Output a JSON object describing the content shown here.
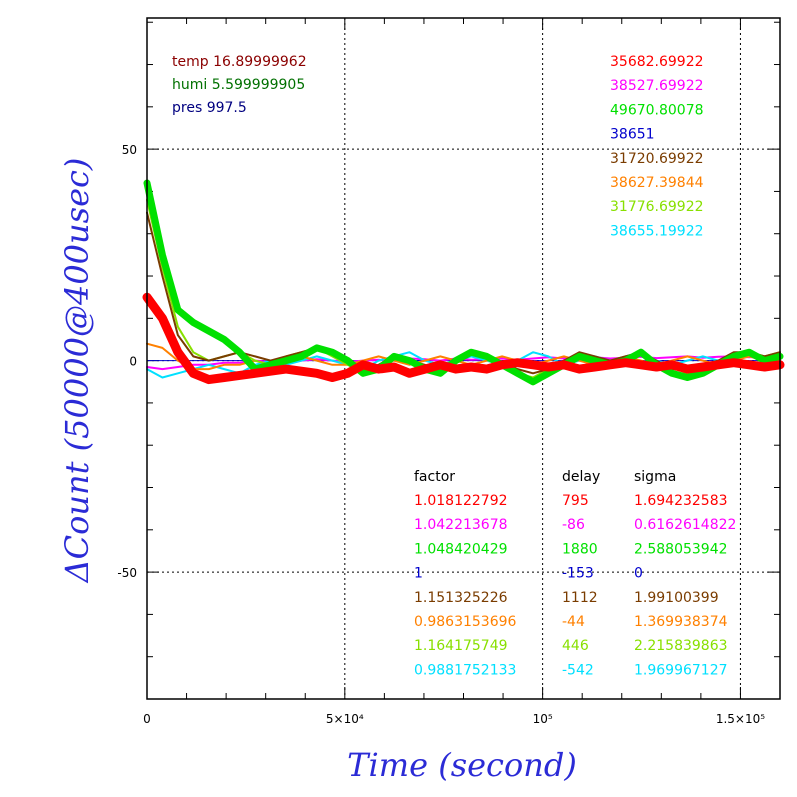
{
  "chart_data": {
    "type": "line",
    "xlabel": "Time (second)",
    "ylabel": "ΔCount (50000@400usec)",
    "xlim": [
      0,
      160000
    ],
    "ylim": [
      -80,
      81
    ],
    "grid": true,
    "x_ticks": [
      {
        "value": 0,
        "label": "0"
      },
      {
        "value": 50000,
        "label": "5×10⁴"
      },
      {
        "value": 100000,
        "label": "10⁵"
      },
      {
        "value": 150000,
        "label": "1.5×10⁵"
      }
    ],
    "y_ticks": [
      {
        "value": 50,
        "label": "50"
      },
      {
        "value": 0,
        "label": "0"
      },
      {
        "value": -50,
        "label": "-50"
      }
    ],
    "env": [
      {
        "text": "temp 16.89999962",
        "color": "#8b0000"
      },
      {
        "text": "humi 5.599999905",
        "color": "#007000"
      },
      {
        "text": "pres 997.5",
        "color": "#000080"
      }
    ],
    "series_values": [
      "35682.69922",
      "38527.69922",
      "49670.80078",
      "38651",
      "31720.69922",
      "38627.39844",
      "31776.69922",
      "38655.19922"
    ],
    "table_headers": {
      "factor": "factor",
      "delay": "delay",
      "sigma": "sigma"
    },
    "series": [
      {
        "color": "#ff0000",
        "factor": "1.018122792",
        "delay": "795",
        "sigma": "1.694232583",
        "width": 9,
        "y": [
          15,
          10,
          2,
          -3,
          -4.5,
          -4,
          -3.5,
          -3,
          -2.5,
          -2,
          -2.5,
          -3,
          -4,
          -3,
          -1,
          -2,
          -1.5,
          -3,
          -2,
          -1,
          -2,
          -1.5,
          -2,
          -1,
          -0.5,
          -1,
          -1.5,
          -1,
          -2,
          -1.5,
          -1,
          -0.5,
          -1,
          -1.5,
          -1,
          -2,
          -1.5,
          -1,
          -0.5,
          -1,
          -1.5,
          -1
        ]
      },
      {
        "color": "#ff00ff",
        "factor": "1.042213678",
        "delay": "-86",
        "sigma": "0.6162614822",
        "width": 2,
        "y": [
          -1.5,
          -2,
          -1.5,
          -1,
          -1,
          -0.5,
          -0.5,
          0,
          -0.3,
          -0.5,
          0,
          0.3,
          0,
          -0.3,
          0,
          0.2,
          0,
          0.5,
          0.3,
          0,
          0.5,
          0.2,
          0.3,
          0.5,
          0.2,
          0.5,
          0.8,
          0.5,
          0.6,
          0.8,
          0.5,
          0.7,
          0.9,
          0.6,
          0.8,
          1,
          0.7,
          0.9,
          1,
          0.8,
          1,
          0.9
        ]
      },
      {
        "color": "#00e000",
        "factor": "1.048420429",
        "delay": "1880",
        "sigma": "2.588053942",
        "width": 7,
        "y": [
          42,
          25,
          12,
          9,
          7,
          5,
          2,
          -2,
          -1,
          0,
          1,
          3,
          2,
          0,
          -3,
          -2,
          1,
          0,
          -2,
          -3,
          0,
          2,
          1,
          -1,
          -3,
          -5,
          -3,
          -1,
          1,
          0,
          -1,
          0,
          2,
          -1,
          -3,
          -4,
          -3,
          -1,
          1,
          2,
          0,
          1
        ]
      },
      {
        "color": "#0000cc",
        "factor": "1",
        "delay": "-153",
        "sigma": "0",
        "width": 1,
        "y": [
          0,
          0,
          0,
          0,
          0,
          0,
          0,
          0,
          0,
          0,
          0,
          0,
          0,
          0,
          0,
          0,
          0,
          0,
          0,
          0,
          0,
          0,
          0,
          0,
          0,
          0,
          0,
          0,
          0,
          0,
          0,
          0,
          0,
          0,
          0,
          0,
          0,
          0,
          0,
          0,
          0,
          0
        ]
      },
      {
        "color": "#7a3c00",
        "factor": "1.151325226",
        "delay": "1112",
        "sigma": "1.99100399",
        "width": 2,
        "y": [
          35,
          20,
          6,
          1,
          0,
          1,
          2,
          1,
          0,
          1,
          2,
          3,
          2,
          0,
          -2,
          -1,
          1,
          0,
          -1,
          -2,
          0,
          2,
          1,
          -1,
          -2,
          -3,
          -2,
          0,
          2,
          1,
          0,
          1,
          2,
          0,
          -2,
          -2,
          -1,
          0,
          2,
          2,
          1,
          2
        ]
      },
      {
        "color": "#ff8000",
        "factor": "0.9863153696",
        "delay": "-44",
        "sigma": "1.369938374",
        "width": 2,
        "y": [
          4,
          3,
          0,
          -2,
          -2,
          -1,
          -1,
          0,
          -1,
          0,
          1,
          0,
          -1,
          -1,
          0,
          1,
          0,
          -1,
          0,
          1,
          0,
          -1,
          0,
          1,
          0,
          -1,
          0,
          1,
          0,
          -1,
          0,
          1,
          0,
          -1,
          0,
          1,
          0,
          -1,
          0,
          1,
          0,
          0
        ]
      },
      {
        "color": "#88e000",
        "factor": "1.164175749",
        "delay": "446",
        "sigma": "2.215839863",
        "width": 2,
        "y": [
          38,
          22,
          8,
          2,
          0,
          1,
          2,
          0,
          -1,
          1,
          2,
          3,
          1,
          -1,
          -3,
          -2,
          1,
          0,
          -2,
          -3,
          0,
          2,
          1,
          -1,
          -3,
          -4,
          -2,
          0,
          1,
          0,
          -1,
          0,
          2,
          -1,
          -3,
          -3,
          -2,
          0,
          1,
          2,
          1,
          2
        ]
      },
      {
        "color": "#00e0ff",
        "factor": "0.9881752133",
        "delay": "-542",
        "sigma": "1.969967127",
        "width": 2,
        "y": [
          -2,
          -4,
          -3,
          -2,
          -1,
          -2,
          -3,
          -1,
          0,
          -1,
          0,
          1,
          0,
          -1,
          -2,
          0,
          1,
          2,
          0,
          -1,
          0,
          1,
          0,
          -1,
          0,
          2,
          1,
          -1,
          0,
          1,
          0,
          1,
          2,
          0,
          -1,
          0,
          1,
          0,
          1,
          2,
          0,
          1
        ]
      }
    ]
  }
}
